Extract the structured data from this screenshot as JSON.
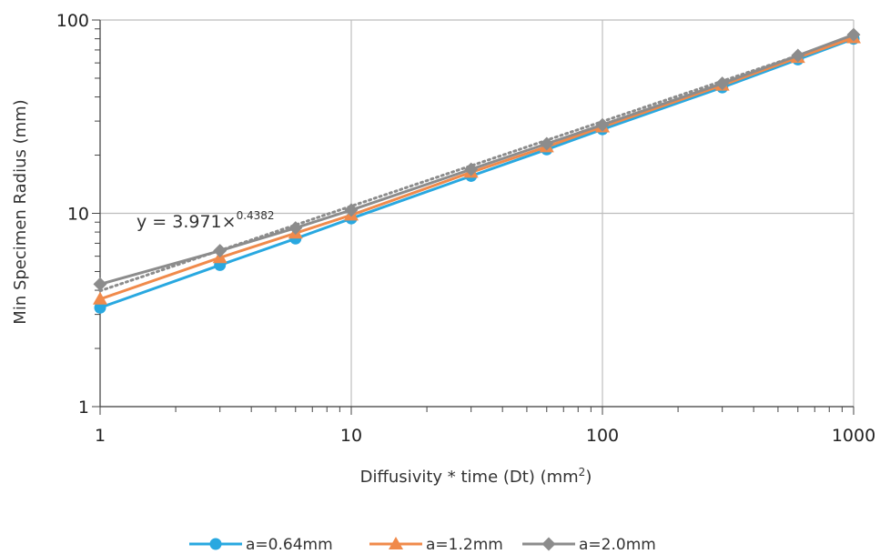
{
  "chart_data": {
    "type": "line",
    "x_scale": "log",
    "y_scale": "log",
    "xlim": [
      1,
      1000
    ],
    "ylim": [
      1,
      100
    ],
    "grid": true,
    "legend_position": "bottom",
    "xlabel": "Diffusivity * time (Dt) (mm",
    "xlabel_sup": "2",
    "xlabel_tail": ")",
    "ylabel": "Min Specimen Radius (mm)",
    "x_ticks": [
      "1",
      "10",
      "100",
      "1000"
    ],
    "y_ticks": [
      "1",
      "10",
      "100"
    ],
    "x": [
      1,
      3,
      6,
      10,
      30,
      60,
      100,
      300,
      600,
      1000
    ],
    "series": [
      {
        "name": "a=0.64mm",
        "color": "#29a8e0",
        "marker": "circle",
        "values": [
          3.25,
          5.4,
          7.4,
          9.4,
          15.6,
          21.4,
          27.2,
          44.8,
          62.5,
          80.0
        ]
      },
      {
        "name": "a=1.2mm",
        "color": "#f08a4b",
        "marker": "triangle",
        "values": [
          3.6,
          5.9,
          7.9,
          9.8,
          16.3,
          22.1,
          28.0,
          46.0,
          64.0,
          81.0
        ]
      },
      {
        "name": "a=2.0mm",
        "color": "#8c8c8c",
        "marker": "diamond",
        "values": [
          4.3,
          6.4,
          8.4,
          10.4,
          16.9,
          22.9,
          28.7,
          47.0,
          65.5,
          84.0
        ]
      }
    ],
    "trendline": {
      "series": "a=2.0mm",
      "color": "#8c8c8c",
      "style": "dotted",
      "coefficient": 3.971,
      "exponent": 0.4382,
      "label_main": "y = 3.971×",
      "label_exp": "0.4382"
    }
  }
}
